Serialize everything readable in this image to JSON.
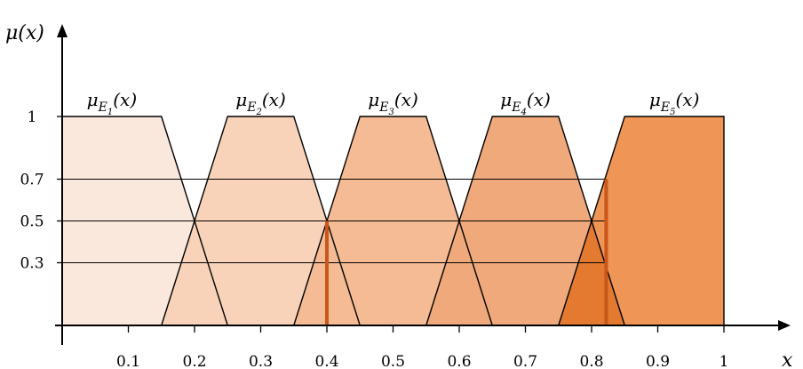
{
  "chart_data": {
    "type": "area",
    "y_axis_title": "μ(x)",
    "x_axis_title": "x",
    "xlim": [
      0,
      1.0
    ],
    "ylim": [
      0,
      1
    ],
    "x_ticks": [
      0.1,
      0.2,
      0.3,
      0.4,
      0.5,
      0.6,
      0.7,
      0.8,
      0.9,
      1
    ],
    "x_tick_labels": [
      "0.1",
      "0.2",
      "0.3",
      "0.4",
      "0.5",
      "0.6",
      "0.7",
      "0.8",
      "0.9",
      "1"
    ],
    "y_ticks": [
      0.3,
      0.5,
      0.7,
      1
    ],
    "y_tick_labels": [
      "0.3",
      "0.5",
      "0.7",
      "1"
    ],
    "reference_lines_y": [
      0.3,
      0.5,
      0.7
    ],
    "series": [
      {
        "label": "μE1(x)",
        "mu": "μ",
        "E": "E",
        "sub": "1",
        "tail": "(x)",
        "points": [
          [
            0,
            1
          ],
          [
            0.15,
            1
          ],
          [
            0.25,
            0
          ]
        ],
        "color": "#fbe8dc"
      },
      {
        "label": "μE2(x)",
        "mu": "μ",
        "E": "E",
        "sub": "2",
        "tail": "(x)",
        "points": [
          [
            0.15,
            0
          ],
          [
            0.25,
            1
          ],
          [
            0.35,
            1
          ],
          [
            0.45,
            0
          ]
        ],
        "color": "#f8d3b9"
      },
      {
        "label": "μE3(x)",
        "mu": "μ",
        "E": "E",
        "sub": "3",
        "tail": "(x)",
        "points": [
          [
            0.35,
            0
          ],
          [
            0.45,
            1
          ],
          [
            0.55,
            1
          ],
          [
            0.65,
            0
          ]
        ],
        "color": "#f5bb95"
      },
      {
        "label": "μE4(x)",
        "mu": "μ",
        "E": "E",
        "sub": "4",
        "tail": "(x)",
        "points": [
          [
            0.55,
            0
          ],
          [
            0.65,
            1
          ],
          [
            0.75,
            1
          ],
          [
            0.85,
            0
          ]
        ],
        "color": "#f0a97a"
      },
      {
        "label": "μE5(x)",
        "mu": "μ",
        "E": "E",
        "sub": "5",
        "tail": "(x)",
        "points": [
          [
            0.75,
            0
          ],
          [
            0.85,
            1
          ],
          [
            1.0,
            1
          ],
          [
            1.0,
            0
          ]
        ],
        "color": "#ef9555"
      }
    ],
    "highlight_lines": [
      {
        "x": 0.4,
        "y": 0.5
      },
      {
        "x": 0.822,
        "y": 0.7
      }
    ],
    "colors": {
      "outline": "#000000",
      "highlight": "#c9561a",
      "overlap_tint": "#e37a30"
    }
  }
}
